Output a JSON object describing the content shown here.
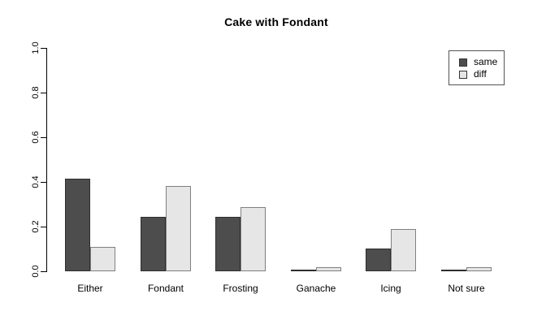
{
  "chart_data": {
    "type": "bar",
    "title": "Cake with Fondant",
    "categories": [
      "Either",
      "Fondant",
      "Frosting",
      "Ganache",
      "Icing",
      "Not sure"
    ],
    "series": [
      {
        "name": "same",
        "values": [
          0.413,
          0.243,
          0.243,
          0.004,
          0.103,
          0.004
        ],
        "fill": "#4d4d4d",
        "border": "#2e2e2e"
      },
      {
        "name": "diff",
        "values": [
          0.11,
          0.381,
          0.286,
          0.018,
          0.19,
          0.018
        ],
        "fill": "#e6e6e6",
        "border": "#808080"
      }
    ],
    "xlabel": "",
    "ylabel": "",
    "ylim": [
      0.0,
      1.0
    ],
    "ytick_labels": [
      "0.0",
      "0.2",
      "0.4",
      "0.6",
      "0.8",
      "1.0"
    ],
    "grid": false,
    "legend": {
      "position": "top-right",
      "entries": [
        "same",
        "diff"
      ]
    },
    "colors": {
      "background": "#ffffff",
      "axis": "#000000",
      "text": "#000000"
    }
  }
}
